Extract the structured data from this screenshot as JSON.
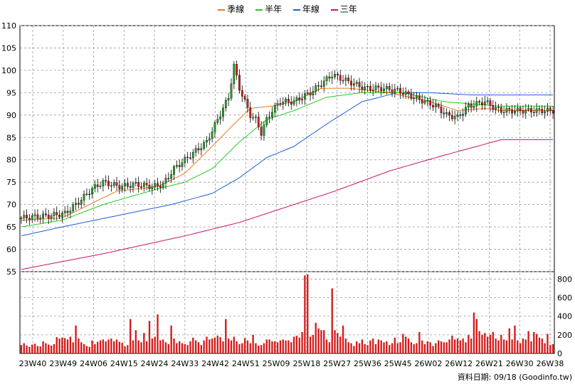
{
  "legend": [
    {
      "label": "季線",
      "color": "#e8781e"
    },
    {
      "label": "半年",
      "color": "#22cc22"
    },
    {
      "label": "年線",
      "color": "#1e5fd8"
    },
    {
      "label": "三年",
      "color": "#cc1166"
    }
  ],
  "footer": {
    "date_label": "資料日期: 09/18",
    "source": "(Goodinfo.tw)"
  },
  "colors": {
    "up": "#1faa1f",
    "down": "#d41c1c",
    "volume": "#d41c1c",
    "grid": "#9a9a9a"
  },
  "chart_data": [
    {
      "type": "candlestick",
      "title": "",
      "ylim": [
        55,
        110
      ],
      "yticks": [
        55,
        60,
        65,
        70,
        75,
        80,
        85,
        90,
        95,
        100,
        105,
        110
      ],
      "xticks": [
        "23W40",
        "23W49",
        "24W06",
        "24W15",
        "24W24",
        "24W33",
        "24W42",
        "24W51",
        "25W09",
        "25W18",
        "25W27",
        "25W36",
        "25W45",
        "26W02",
        "26W12",
        "26W21",
        "26W30",
        "26W38"
      ],
      "series_names": [
        "季線",
        "半年",
        "年線",
        "三年"
      ],
      "anchors_close": [
        [
          0,
          67
        ],
        [
          10,
          67.5
        ],
        [
          16,
          68
        ],
        [
          20,
          70
        ],
        [
          26,
          73.5
        ],
        [
          30,
          75
        ],
        [
          36,
          74
        ],
        [
          42,
          74.5
        ],
        [
          48,
          74
        ],
        [
          52,
          74.5
        ],
        [
          56,
          78
        ],
        [
          62,
          81
        ],
        [
          68,
          84
        ],
        [
          72,
          89
        ],
        [
          76,
          94
        ],
        [
          78,
          101
        ],
        [
          80,
          96
        ],
        [
          82,
          93
        ],
        [
          84,
          90
        ],
        [
          86,
          89
        ],
        [
          88,
          86
        ],
        [
          90,
          89
        ],
        [
          92,
          91
        ],
        [
          95,
          93
        ],
        [
          100,
          93
        ],
        [
          106,
          95
        ],
        [
          110,
          97
        ],
        [
          114,
          99
        ],
        [
          120,
          97.5
        ],
        [
          126,
          96
        ],
        [
          132,
          96
        ],
        [
          138,
          95.5
        ],
        [
          144,
          94
        ],
        [
          148,
          93
        ],
        [
          152,
          92
        ],
        [
          156,
          90
        ],
        [
          160,
          89.5
        ],
        [
          164,
          92
        ],
        [
          170,
          93
        ],
        [
          174,
          91.5
        ],
        [
          176,
          91
        ]
      ],
      "anchors_ma_quarter": [
        [
          0,
          66.5
        ],
        [
          15,
          67
        ],
        [
          25,
          70
        ],
        [
          35,
          73
        ],
        [
          50,
          74
        ],
        [
          60,
          77
        ],
        [
          70,
          83
        ],
        [
          78,
          88
        ],
        [
          84,
          91.5
        ],
        [
          92,
          92
        ],
        [
          100,
          93
        ],
        [
          110,
          96
        ],
        [
          120,
          96
        ],
        [
          135,
          95
        ],
        [
          150,
          93
        ],
        [
          160,
          91
        ],
        [
          170,
          91.5
        ],
        [
          176,
          91
        ]
      ],
      "anchors_ma_half": [
        [
          0,
          65
        ],
        [
          15,
          66.5
        ],
        [
          30,
          70
        ],
        [
          50,
          73.5
        ],
        [
          60,
          75
        ],
        [
          70,
          78
        ],
        [
          80,
          84
        ],
        [
          90,
          89
        ],
        [
          100,
          91
        ],
        [
          112,
          94
        ],
        [
          125,
          95
        ],
        [
          140,
          95
        ],
        [
          155,
          93
        ],
        [
          165,
          92.5
        ],
        [
          176,
          92
        ]
      ],
      "anchors_ma_year": [
        [
          0,
          63
        ],
        [
          15,
          65
        ],
        [
          35,
          67.5
        ],
        [
          55,
          70
        ],
        [
          70,
          72.5
        ],
        [
          80,
          76
        ],
        [
          90,
          80.5
        ],
        [
          100,
          83
        ],
        [
          112,
          88
        ],
        [
          125,
          93
        ],
        [
          138,
          95
        ],
        [
          150,
          95
        ],
        [
          165,
          94.5
        ],
        [
          176,
          94.5
        ]
      ],
      "anchors_ma_3y": [
        [
          0,
          55.5
        ],
        [
          30,
          59
        ],
        [
          60,
          63
        ],
        [
          80,
          66
        ],
        [
          95,
          69
        ],
        [
          115,
          73
        ],
        [
          135,
          77.5
        ],
        [
          155,
          81
        ],
        [
          170,
          83.5
        ],
        [
          176,
          84.5
        ]
      ]
    },
    {
      "type": "bar",
      "title": "",
      "ylim": [
        0,
        880
      ],
      "yticks": [
        0,
        200,
        400,
        600,
        800
      ],
      "values": [
        90,
        110,
        85,
        70,
        95,
        105,
        80,
        75,
        130,
        110,
        95,
        85,
        100,
        175,
        160,
        170,
        165,
        150,
        180,
        120,
        300,
        160,
        120,
        100,
        80,
        70,
        140,
        100,
        125,
        140,
        150,
        130,
        150,
        160,
        130,
        150,
        125,
        115,
        75,
        90,
        370,
        140,
        250,
        140,
        120,
        220,
        130,
        350,
        160,
        180,
        420,
        140,
        150,
        120,
        100,
        300,
        160,
        110,
        130,
        110,
        100,
        90,
        130,
        170,
        140,
        120,
        90,
        140,
        180,
        150,
        160,
        170,
        190,
        175,
        130,
        370,
        160,
        140,
        180,
        130,
        100,
        110,
        165,
        140,
        110,
        200,
        110,
        85,
        90,
        110,
        150,
        150,
        130,
        130,
        120,
        140,
        150,
        140,
        140,
        120,
        180,
        190,
        170,
        230,
        840,
        850,
        180,
        200,
        330,
        270,
        250,
        250,
        150,
        120,
        700,
        250,
        220,
        180,
        300,
        160,
        120,
        110,
        80,
        130,
        110,
        150,
        100,
        90,
        140,
        160,
        100,
        150,
        140,
        120,
        130,
        90,
        110,
        170,
        110,
        120,
        210,
        180,
        160,
        120,
        100,
        110,
        230,
        140,
        100,
        130,
        120,
        80,
        110,
        140,
        130,
        120,
        120,
        150,
        190,
        150,
        160,
        140,
        160,
        120,
        200,
        160,
        440,
        370,
        240,
        200,
        220,
        180,
        200,
        230,
        160,
        140,
        200,
        150,
        140,
        270,
        150,
        300,
        140,
        110,
        160,
        150,
        240,
        130,
        230,
        210,
        170,
        160,
        110,
        210,
        90,
        100
      ]
    }
  ]
}
